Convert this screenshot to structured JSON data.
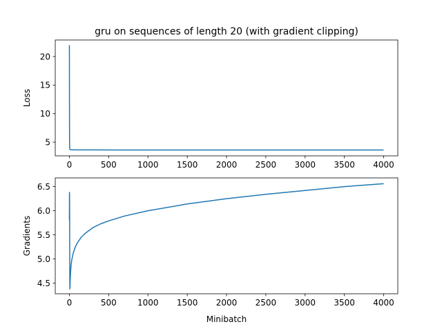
{
  "title": "gru on sequences of length 20 (with gradient clipping)",
  "chart_data": [
    {
      "type": "line",
      "ylabel": "Loss",
      "xlabel": "",
      "xlim": [
        -180,
        4180
      ],
      "ylim": [
        2.6,
        22.9
      ],
      "xticks": [
        0,
        500,
        1000,
        1500,
        2000,
        2500,
        3000,
        3500,
        4000
      ],
      "yticks": [
        5,
        10,
        15,
        20
      ],
      "grid": false,
      "line_color": "#1f77b4",
      "series": [
        {
          "x": [
            0,
            1,
            2,
            3,
            5,
            8,
            12,
            20,
            40,
            80,
            150,
            300,
            600,
            1000,
            1500,
            2000,
            2500,
            3000,
            3500,
            4000
          ],
          "y": [
            22.0,
            12.0,
            6.0,
            4.2,
            3.8,
            3.7,
            3.68,
            3.66,
            3.65,
            3.64,
            3.64,
            3.64,
            3.63,
            3.63,
            3.63,
            3.63,
            3.63,
            3.63,
            3.63,
            3.62
          ]
        }
      ]
    },
    {
      "type": "line",
      "ylabel": "Gradients",
      "xlabel": "Minibatch",
      "xlim": [
        -180,
        4180
      ],
      "ylim": [
        4.28,
        6.68
      ],
      "xticks": [
        0,
        500,
        1000,
        1500,
        2000,
        2500,
        3000,
        3500,
        4000
      ],
      "yticks": [
        4.5,
        5.0,
        5.5,
        6.0,
        6.5
      ],
      "grid": false,
      "line_color": "#1f77b4",
      "series": [
        {
          "x": [
            0,
            1,
            2,
            3,
            4,
            5,
            6,
            8,
            10,
            15,
            20,
            30,
            50,
            75,
            100,
            150,
            200,
            300,
            400,
            500,
            700,
            1000,
            1500,
            2000,
            2500,
            3000,
            3500,
            4000
          ],
          "y": [
            5.8,
            6.38,
            6.3,
            5.9,
            5.2,
            4.6,
            4.38,
            4.45,
            4.55,
            4.72,
            4.85,
            4.98,
            5.13,
            5.25,
            5.33,
            5.45,
            5.53,
            5.65,
            5.73,
            5.79,
            5.89,
            6.0,
            6.14,
            6.25,
            6.34,
            6.42,
            6.5,
            6.56
          ]
        }
      ]
    }
  ]
}
